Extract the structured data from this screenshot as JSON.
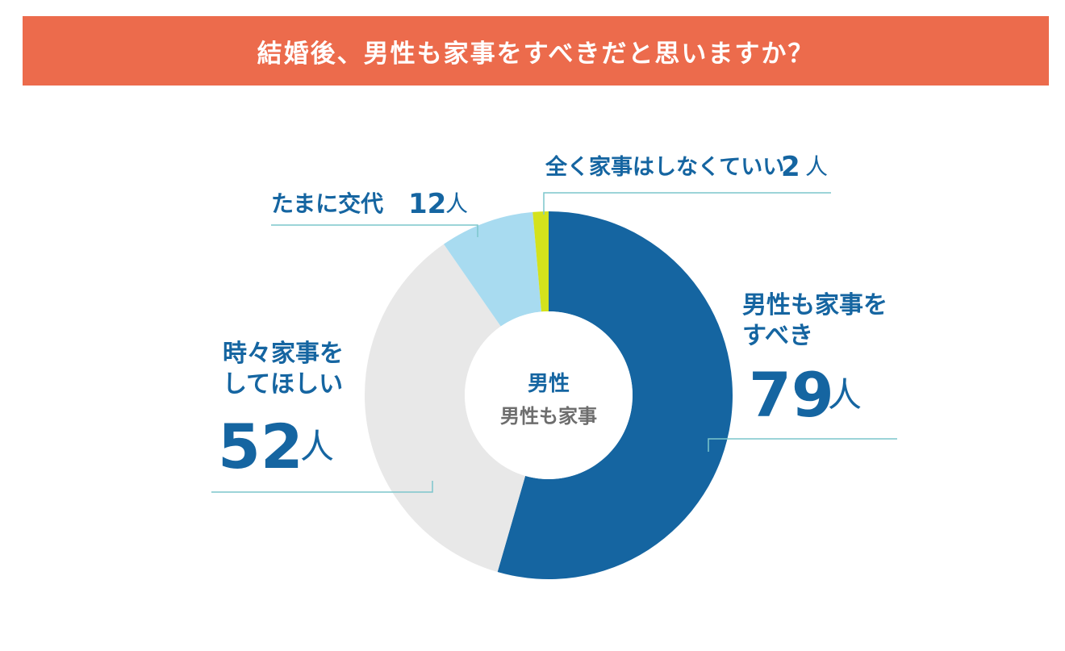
{
  "header": {
    "title": "結婚後、男性も家事をすべきだと思いますか？"
  },
  "center": {
    "main": "男性",
    "sub": "男性も家事"
  },
  "unit": "人",
  "chart_data": {
    "type": "pie",
    "title": "結婚後、男性も家事をすべきだと思いますか？",
    "series": [
      {
        "label_lines": [
          "男性も家事を",
          "すべき"
        ],
        "label": "男性も家事をすべき",
        "value": 79,
        "color": "#1565a1"
      },
      {
        "label_lines": [
          "時々家事を",
          "してほしい"
        ],
        "label": "時々家事をしてほしい",
        "value": 52,
        "color": "#e8e8e8"
      },
      {
        "label_lines": [
          "たまに交代"
        ],
        "label": "たまに交代",
        "value": 12,
        "color": "#a8dbf0"
      },
      {
        "label_lines": [
          "全く家事はしなくていい"
        ],
        "label": "全く家事はしなくていい",
        "value": 2,
        "color": "#d4e21c"
      }
    ],
    "leader_color": "#7cc6cc"
  }
}
